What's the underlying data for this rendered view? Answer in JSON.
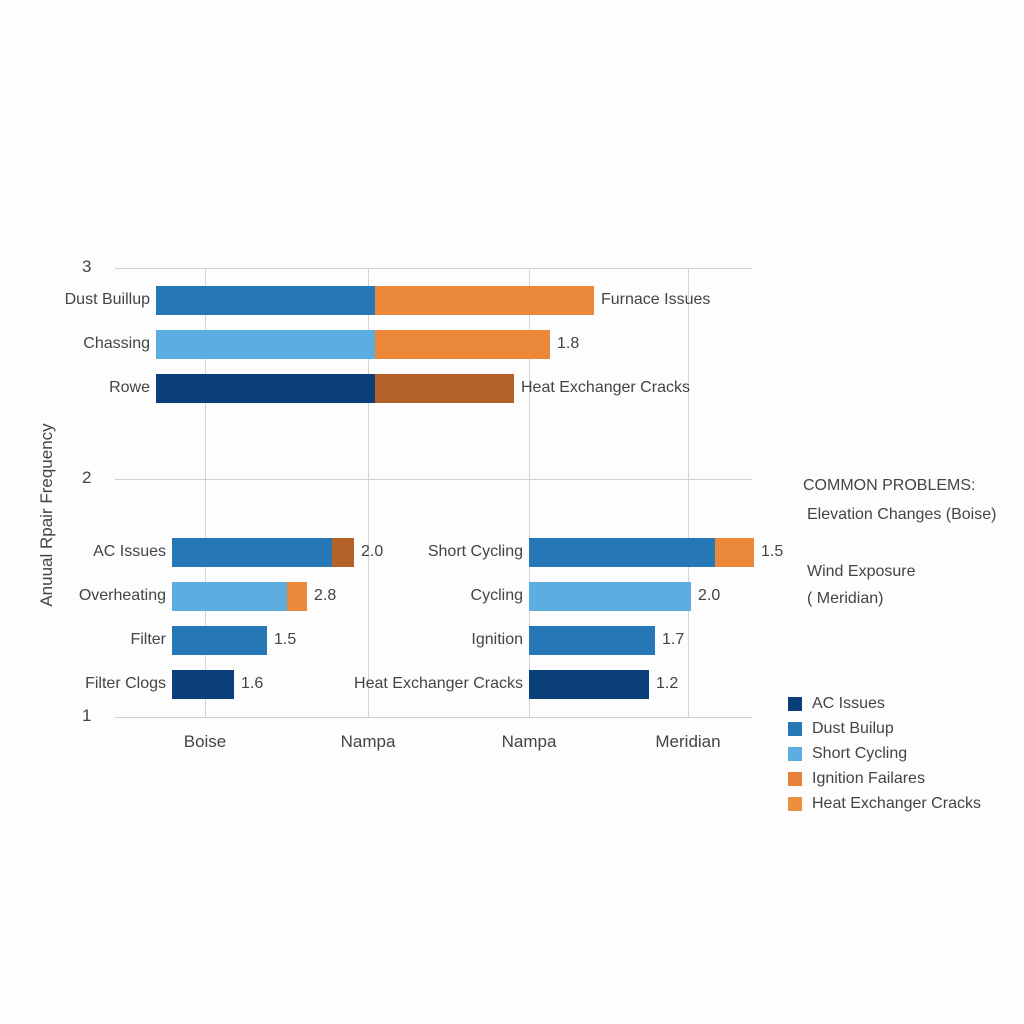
{
  "chart_data": {
    "type": "bar",
    "orientation": "horizontal-stacked",
    "ylabel": "Anuual Rpair Frequency",
    "y_ticks": [
      "3",
      "2",
      "1"
    ],
    "x_ticks": [
      "Boise",
      "Nampa",
      "Nampa",
      "Meridian"
    ],
    "grid": true,
    "groups": [
      {
        "bars": [
          {
            "label": "Dust Buillup",
            "end_label": "Furnace Issues"
          },
          {
            "label": "Chassing",
            "end_label": "1.8"
          },
          {
            "label": "Rowe",
            "end_label": "Heat Exchanger Cracks"
          }
        ]
      },
      {
        "bars": [
          {
            "label": "AC Issues",
            "end_label": "2.0"
          },
          {
            "label": "Overheating",
            "end_label": "2.8"
          },
          {
            "label": "Filter",
            "end_label": "1.5"
          },
          {
            "label": "Filter Clogs",
            "end_label": "1.6"
          }
        ]
      },
      {
        "bars": [
          {
            "label": "Short Cycling",
            "end_label": "1.5"
          },
          {
            "label": "Cycling",
            "end_label": "2.0"
          },
          {
            "label": "Ignition",
            "end_label": "1.7"
          },
          {
            "label": "Heat Exchanger Cracks",
            "end_label": "1.2"
          }
        ]
      }
    ],
    "annotations": {
      "heading": "COMMON PROBLEMS:",
      "line1": "Elevation Changes (Boise)",
      "line2a": "Wind Exposure",
      "line2b": "( Meridian)"
    },
    "legend_position": "bottom-right",
    "legend": [
      {
        "name": "AC Issues",
        "color": "#0b3f7a"
      },
      {
        "name": "Dust Builup",
        "color": "#2677b5"
      },
      {
        "name": "Short Cycling",
        "color": "#5daee0"
      },
      {
        "name": "Ignition Failares",
        "color": "#e8813a"
      },
      {
        "name": "Heat Exchanger Cracks",
        "color": "#ee8f3f"
      }
    ],
    "colors": {
      "dark": "#0b3f7a",
      "mid": "#2677b5",
      "light": "#5daee0",
      "orange": "#ec883a",
      "brown": "#b5622a"
    }
  }
}
